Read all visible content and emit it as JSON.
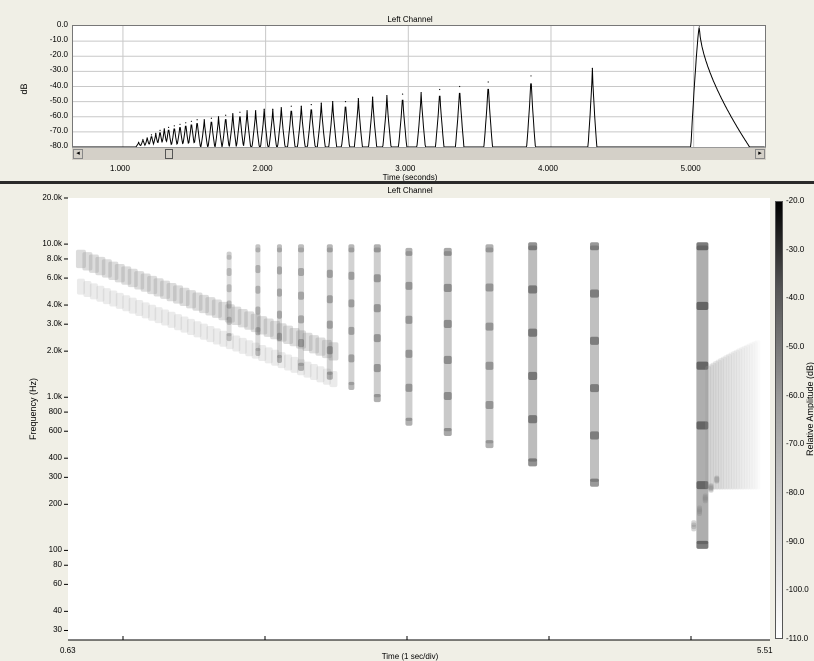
{
  "waveform": {
    "title": "Left Channel",
    "ylabel": "dB",
    "yticks": [
      "0.0",
      "-10.0",
      "-20.0",
      "-30.0",
      "-40.0",
      "-50.0",
      "-60.0",
      "-70.0",
      "-80.0"
    ],
    "xticks": [
      "1.000",
      "2.000",
      "3.000",
      "4.000",
      "5.000"
    ],
    "xlabel": "Time (seconds)"
  },
  "spectrogram": {
    "title": "Left Channel",
    "ylabel": "Frequency (Hz)",
    "yticks": [
      "20.0k",
      "10.0k",
      "8.0k",
      "6.0k",
      "4.0k",
      "3.0k",
      "2.0k",
      "1.0k",
      "800",
      "600",
      "400",
      "300",
      "200",
      "100",
      "80",
      "60",
      "40",
      "30"
    ],
    "x_start": "0.63",
    "x_end": "5.51",
    "xlabel": "Time (1 sec/div)",
    "colorbar_ticks": [
      "-20.0",
      "-30.0",
      "-40.0",
      "-50.0",
      "-60.0",
      "-70.0",
      "-80.0",
      "-90.0",
      "-100.0",
      "-110.0"
    ],
    "colorbar_label": "Relative Amplitude (dB)"
  },
  "chart_data": [
    {
      "type": "line",
      "title": "Left Channel",
      "xlabel": "Time (seconds)",
      "ylabel": "dB",
      "xlim": [
        0.65,
        5.5
      ],
      "ylim": [
        -80,
        0
      ],
      "grid": true,
      "series": [
        {
          "x": [
            1.11,
            1.14,
            1.17,
            1.2,
            1.23,
            1.26,
            1.29,
            1.32,
            1.36,
            1.4,
            1.44,
            1.48,
            1.52,
            1.57,
            1.62,
            1.67,
            1.72,
            1.77,
            1.82,
            1.87,
            1.93,
            1.99,
            2.05,
            2.11,
            2.18,
            2.25,
            2.32,
            2.39,
            2.47,
            2.56,
            2.65,
            2.75,
            2.85,
            2.96,
            3.09,
            3.22,
            3.36,
            3.56,
            3.86,
            4.29,
            5.04
          ],
          "values": [
            -77,
            -75,
            -74,
            -72,
            -71,
            -69,
            -68,
            -67,
            -66,
            -65,
            -64,
            -63,
            -62,
            -62,
            -61,
            -60,
            -59,
            -58,
            -57,
            -56,
            -56,
            -55,
            -55,
            -54,
            -53,
            -53,
            -52,
            -51,
            -50,
            -50,
            -48,
            -47,
            -46,
            -45,
            -44,
            -42,
            -40,
            -37,
            -33,
            -28,
            0
          ]
        }
      ]
    },
    {
      "type": "heatmap",
      "title": "Left Channel",
      "xlabel": "Time (1 sec/div)",
      "ylabel": "Frequency (Hz)",
      "xlim": [
        0.63,
        5.51
      ],
      "ylim": [
        30,
        20000
      ],
      "y_scale": "log",
      "colorbar_range": [
        -110,
        -20
      ],
      "colorbar_label": "Relative Amplitude (dB)"
    }
  ]
}
